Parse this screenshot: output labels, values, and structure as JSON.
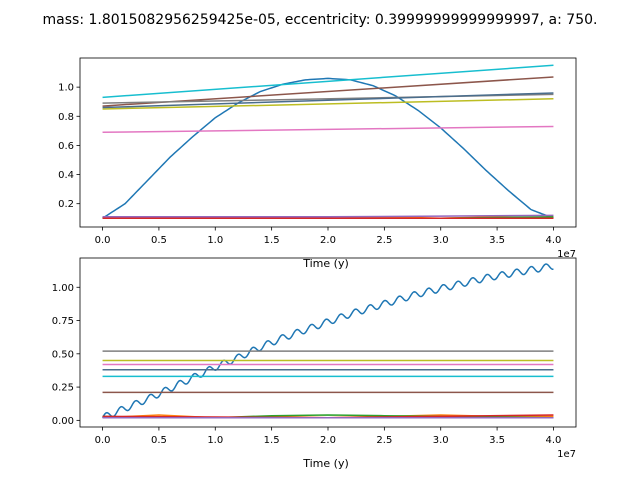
{
  "figure": {
    "title": "mass: 1.8015082956259425e-05, eccentricity: 0.39999999999999997, a: 750.",
    "background": "#ffffff",
    "series_colors": [
      "#1f77b4",
      "#ff7f0e",
      "#2ca02c",
      "#d62728",
      "#9467bd",
      "#8c564b",
      "#e377c2",
      "#7f7f7f",
      "#bcbd22",
      "#17becf"
    ]
  },
  "chart_data": [
    {
      "type": "line",
      "xlabel": "Time (y)",
      "ylabel": "",
      "xlim": [
        -2000000,
        42000000
      ],
      "ylim": [
        0.04,
        1.2
      ],
      "xticks": [
        0,
        5000000,
        10000000,
        15000000,
        20000000,
        25000000,
        30000000,
        35000000,
        40000000
      ],
      "xtick_labels": [
        "0.0",
        "0.5",
        "1.0",
        "1.5",
        "2.0",
        "2.5",
        "3.0",
        "3.5",
        "4.0"
      ],
      "x_offset_label": "1e7",
      "yticks": [
        0.2,
        0.4,
        0.6,
        0.8,
        1.0
      ],
      "ytick_labels": [
        "0.2",
        "0.4",
        "0.6",
        "0.8",
        "1.0"
      ],
      "grid": false,
      "series": [
        {
          "color": "#1f77b4",
          "x": [
            0,
            2000000,
            4000000,
            6000000,
            8000000,
            10000000,
            12000000,
            14000000,
            16000000,
            18000000,
            20000000,
            22000000,
            24000000,
            26000000,
            28000000,
            30000000,
            32000000,
            34000000,
            36000000,
            38000000,
            40000000
          ],
          "y": [
            0.1,
            0.2,
            0.36,
            0.52,
            0.66,
            0.79,
            0.89,
            0.97,
            1.02,
            1.05,
            1.06,
            1.05,
            1.01,
            0.94,
            0.84,
            0.72,
            0.58,
            0.43,
            0.29,
            0.16,
            0.1
          ]
        },
        {
          "color": "#ff7f0e",
          "x": [
            0,
            5000000,
            10000000,
            15000000,
            20000000,
            25000000,
            30000000,
            35000000,
            40000000
          ],
          "y": [
            0.1,
            0.11,
            0.1,
            0.11,
            0.1,
            0.11,
            0.1,
            0.11,
            0.1
          ]
        },
        {
          "color": "#2ca02c",
          "x": [
            0,
            10000000,
            20000000,
            30000000,
            40000000
          ],
          "y": [
            0.1,
            0.1,
            0.1,
            0.1,
            0.11
          ]
        },
        {
          "color": "#d62728",
          "x": [
            0,
            10000000,
            20000000,
            30000000,
            40000000
          ],
          "y": [
            0.1,
            0.1,
            0.1,
            0.1,
            0.1
          ]
        },
        {
          "color": "#9467bd",
          "x": [
            0,
            10000000,
            20000000,
            30000000,
            40000000
          ],
          "y": [
            0.11,
            0.11,
            0.11,
            0.115,
            0.12
          ]
        },
        {
          "color": "#8c564b",
          "x": [
            0,
            40000000
          ],
          "y": [
            0.87,
            1.07
          ]
        },
        {
          "color": "#e377c2",
          "x": [
            0,
            40000000
          ],
          "y": [
            0.69,
            0.73
          ]
        },
        {
          "color": "#7f7f7f",
          "x": [
            0,
            40000000
          ],
          "y": [
            0.89,
            0.95
          ]
        },
        {
          "color": "#bcbd22",
          "x": [
            0,
            40000000
          ],
          "y": [
            0.85,
            0.92
          ]
        },
        {
          "color": "#17becf",
          "x": [
            0,
            40000000
          ],
          "y": [
            0.93,
            1.15
          ]
        },
        {
          "color": "#4a6d8c",
          "x": [
            0,
            40000000
          ],
          "y": [
            0.86,
            0.96
          ]
        }
      ]
    },
    {
      "type": "line",
      "xlabel": "Time (y)",
      "ylabel": "",
      "xlim": [
        -2000000,
        42000000
      ],
      "ylim": [
        -0.05,
        1.22
      ],
      "xticks": [
        0,
        5000000,
        10000000,
        15000000,
        20000000,
        25000000,
        30000000,
        35000000,
        40000000
      ],
      "xtick_labels": [
        "0.0",
        "0.5",
        "1.0",
        "1.5",
        "2.0",
        "2.5",
        "3.0",
        "3.5",
        "4.0"
      ],
      "x_offset_label": "1e7",
      "yticks": [
        0.0,
        0.25,
        0.5,
        0.75,
        1.0
      ],
      "ytick_labels": [
        "0.00",
        "0.25",
        "0.50",
        "0.75",
        "1.00"
      ],
      "grid": false,
      "series": [
        {
          "color": "#1f77b4",
          "kind": "oscillating",
          "x": [
            0,
            2000000,
            4000000,
            6000000,
            8000000,
            10000000,
            12000000,
            14000000,
            16000000,
            18000000,
            20000000,
            22000000,
            24000000,
            26000000,
            28000000,
            30000000,
            32000000,
            34000000,
            36000000,
            38000000,
            40000000
          ],
          "y": [
            0.02,
            0.09,
            0.16,
            0.24,
            0.32,
            0.4,
            0.47,
            0.55,
            0.62,
            0.68,
            0.74,
            0.8,
            0.85,
            0.9,
            0.95,
            0.99,
            1.03,
            1.07,
            1.1,
            1.13,
            1.16
          ]
        },
        {
          "color": "#ff7f0e",
          "x": [
            0,
            5000000,
            10000000,
            15000000,
            20000000,
            25000000,
            30000000,
            35000000,
            40000000
          ],
          "y": [
            0.02,
            0.04,
            0.02,
            0.03,
            0.02,
            0.03,
            0.04,
            0.03,
            0.03
          ]
        },
        {
          "color": "#2ca02c",
          "x": [
            0,
            5000000,
            10000000,
            15000000,
            20000000,
            25000000,
            30000000,
            35000000,
            40000000
          ],
          "y": [
            0.03,
            0.02,
            0.02,
            0.035,
            0.04,
            0.035,
            0.03,
            0.025,
            0.02
          ]
        },
        {
          "color": "#d62728",
          "x": [
            0,
            10000000,
            20000000,
            30000000,
            40000000
          ],
          "y": [
            0.03,
            0.025,
            0.02,
            0.03,
            0.04
          ]
        },
        {
          "color": "#9467bd",
          "x": [
            0,
            10000000,
            20000000,
            30000000,
            40000000
          ],
          "y": [
            0.02,
            0.02,
            0.02,
            0.02,
            0.02
          ]
        },
        {
          "color": "#8c564b",
          "x": [
            0,
            40000000
          ],
          "y": [
            0.21,
            0.21
          ]
        },
        {
          "color": "#e377c2",
          "x": [
            0,
            40000000
          ],
          "y": [
            0.42,
            0.42
          ]
        },
        {
          "color": "#7f7f7f",
          "x": [
            0,
            40000000
          ],
          "y": [
            0.52,
            0.52
          ]
        },
        {
          "color": "#bcbd22",
          "x": [
            0,
            40000000
          ],
          "y": [
            0.45,
            0.45
          ]
        },
        {
          "color": "#17becf",
          "x": [
            0,
            40000000
          ],
          "y": [
            0.33,
            0.33
          ]
        },
        {
          "color": "#4a6d8c",
          "x": [
            0,
            40000000
          ],
          "y": [
            0.38,
            0.38
          ]
        }
      ]
    }
  ]
}
